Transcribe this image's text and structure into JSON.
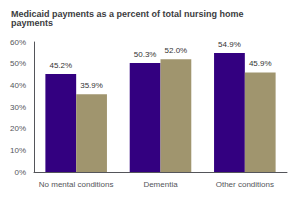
{
  "chart_data": {
    "type": "bar",
    "title": "Medicaid payments as a percent of total nursing home payments",
    "categories": [
      "No mental conditions",
      "Dementia",
      "Other conditions"
    ],
    "series": [
      {
        "color": "#330080",
        "values": [
          45.2,
          50.3,
          54.9
        ],
        "value_labels": [
          "45.2%",
          "50.3%",
          "54.9%"
        ]
      },
      {
        "color": "#a0956e",
        "values": [
          35.9,
          52.0,
          45.9
        ],
        "value_labels": [
          "35.9%",
          "52.0%",
          "45.9%"
        ]
      }
    ],
    "ylim": [
      0,
      60
    ],
    "yticks": [
      {
        "value": 0,
        "label": "0%"
      },
      {
        "value": 10,
        "label": "10%"
      },
      {
        "value": 20,
        "label": "20%"
      },
      {
        "value": 30,
        "label": "30%"
      },
      {
        "value": 40,
        "label": "40%"
      },
      {
        "value": 50,
        "label": "50%"
      },
      {
        "value": 60,
        "label": "60%"
      }
    ],
    "grid": false,
    "data_labels": true
  }
}
